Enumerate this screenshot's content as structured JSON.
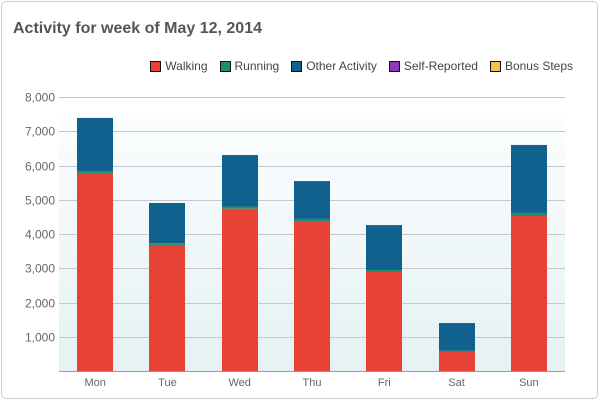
{
  "chart_data": {
    "type": "bar",
    "stacked": true,
    "title": "Activity for week of May 12, 2014",
    "xlabel": "",
    "ylabel": "",
    "ylim": [
      0,
      8000
    ],
    "yticks": [
      1000,
      2000,
      3000,
      4000,
      5000,
      6000,
      7000,
      8000
    ],
    "ytick_labels": [
      "1,000",
      "2,000",
      "3,000",
      "4,000",
      "5,000",
      "6,000",
      "7,000",
      "8,000"
    ],
    "grid": true,
    "legend_position": "top-right",
    "categories": [
      "Mon",
      "Tue",
      "Wed",
      "Thu",
      "Fri",
      "Sat",
      "Sun"
    ],
    "series": [
      {
        "name": "Walking",
        "color": "#e84236",
        "values": [
          5780,
          3680,
          4740,
          4380,
          2890,
          555,
          4525
        ]
      },
      {
        "name": "Running",
        "color": "#16936b",
        "values": [
          60,
          50,
          60,
          60,
          60,
          40,
          90
        ]
      },
      {
        "name": "Other Activity",
        "color": "#11618f",
        "values": [
          1550,
          1175,
          1505,
          1105,
          1310,
          805,
          1985
        ]
      },
      {
        "name": "Self-Reported",
        "color": "#8e3bb6",
        "values": [
          0,
          0,
          0,
          0,
          0,
          0,
          0
        ]
      },
      {
        "name": "Bonus Steps",
        "color": "#f5c24f",
        "values": [
          0,
          0,
          0,
          0,
          0,
          0,
          0
        ]
      }
    ]
  }
}
